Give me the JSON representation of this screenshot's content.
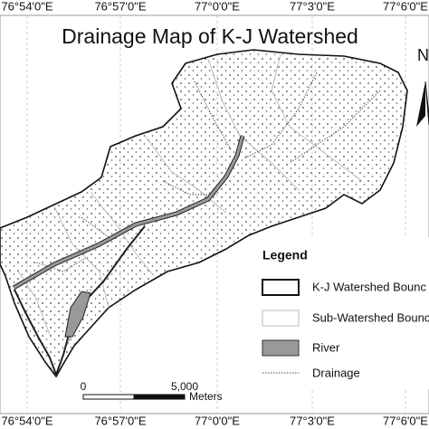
{
  "title": "Drainage Map of K-J Watershed",
  "top_coordinates": [
    "76°54'0\"E",
    "76°57'0\"E",
    "77°0'0\"E",
    "77°3'0\"E",
    "77°6'0\"E"
  ],
  "bottom_coordinates": [
    "76°54'0\"E",
    "76°57'0\"E",
    "77°0'0\"E",
    "77°3'0\"E",
    "77°6'0\"E"
  ],
  "north_arrow": "N",
  "legend": {
    "title": "Legend",
    "items": [
      "K-J Watershed Bounc",
      "Sub-Watershed Bounc",
      "River",
      "Drainage"
    ]
  },
  "scale_bar": {
    "start": "0",
    "end": "5,000",
    "unit": "Meters"
  }
}
